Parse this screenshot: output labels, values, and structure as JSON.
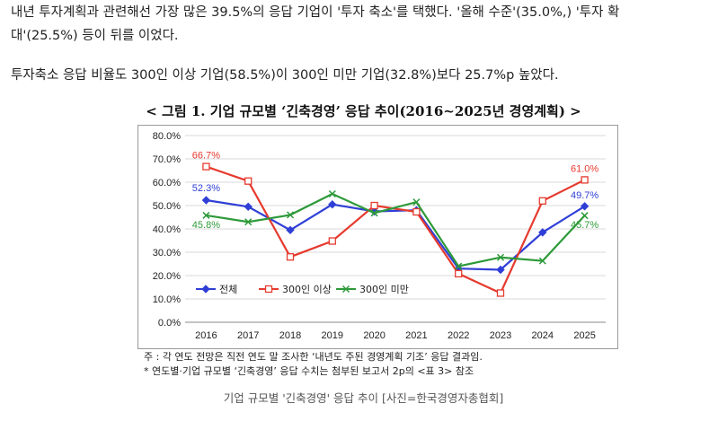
{
  "article": {
    "para1_line1": "내년 투자계획과 관련해선 가장 많은 39.5%의 응답 기업이 '투자 축소'를 택했다. '올해 수준'(35.0%,) '투자 확",
    "para1_line2": "대'(25.5%) 등이 뒤를 이었다.",
    "para2": "투자축소 응답 비율도 300인 이상 기업(58.5%)이 300인 미만 기업(32.8%)보다 25.7%p 높았다."
  },
  "figure": {
    "title": "< 그림 1. 기업 규모별 ‘긴축경영’ 응답 추이(2016~2025년 경영계획) >",
    "note1": "주 : 각 연도 전망은 직전 연도 말 조사한 ‘내년도 주된 경영계획 기조’ 응답 결과임.",
    "note2": "* 연도별·기업 규모별 ‘긴축경영’ 응답 수치는 첨부된 보고서 2p의 <표 3> 참조",
    "caption": "기업 규모별 '긴축경영' 응답 추이 [사진=한국경영자총협회]"
  },
  "chart_data": {
    "type": "line",
    "x": [
      2016,
      2017,
      2018,
      2019,
      2020,
      2021,
      2022,
      2023,
      2024,
      2025
    ],
    "ylim": [
      0,
      80
    ],
    "y_ticks": [
      "0.0%",
      "10.0%",
      "20.0%",
      "30.0%",
      "40.0%",
      "50.0%",
      "60.0%",
      "70.0%",
      "80.0%"
    ],
    "grid": true,
    "legend_position": "bottom-left",
    "series": [
      {
        "name": "전체",
        "color": "#2f3fd6",
        "marker": "diamond",
        "values": [
          52.3,
          49.5,
          39.5,
          50.5,
          47.5,
          48.0,
          23.0,
          22.5,
          38.5,
          49.7
        ]
      },
      {
        "name": "300인 이상",
        "color": "#e63a2e",
        "marker": "square",
        "values": [
          66.7,
          60.5,
          28.0,
          34.8,
          50.0,
          47.3,
          20.8,
          12.5,
          52.0,
          61.0
        ]
      },
      {
        "name": "300인 미만",
        "color": "#2e9a3a",
        "marker": "x",
        "values": [
          45.8,
          43.0,
          46.0,
          55.0,
          46.8,
          51.5,
          24.0,
          27.8,
          26.3,
          45.7
        ]
      }
    ],
    "data_labels": [
      {
        "series": 1,
        "index": 0,
        "text": "66.7%"
      },
      {
        "series": 0,
        "index": 0,
        "text": "52.3%"
      },
      {
        "series": 2,
        "index": 0,
        "text": "45.8%"
      },
      {
        "series": 1,
        "index": 9,
        "text": "61.0%"
      },
      {
        "series": 0,
        "index": 9,
        "text": "49.7%"
      },
      {
        "series": 2,
        "index": 9,
        "text": "45.7%"
      }
    ]
  }
}
